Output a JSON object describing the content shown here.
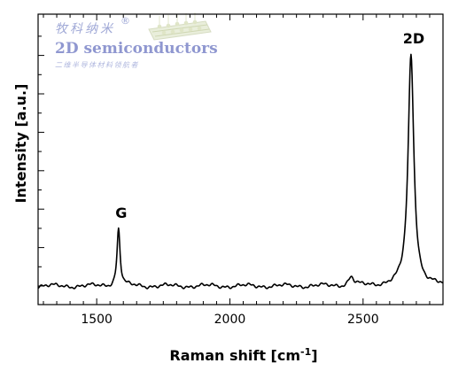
{
  "watermark": {
    "brand_cn": "牧科纳米",
    "registered": "®",
    "brand_en": "2D semiconductors",
    "tagline_cn": "二维半导体材料领航者"
  },
  "chart_data": {
    "type": "line",
    "title": "",
    "xlabel": "Raman shift [cm",
    "xlabel_sup": "-1",
    "xlabel_close": "]",
    "ylabel": "Intensity [a.u.]",
    "xlim": [
      1280,
      2800
    ],
    "ylim": [
      0,
      1
    ],
    "x_ticks": [
      1500,
      2000,
      2500
    ],
    "y_tick_labels_shown": false,
    "grid": false,
    "legend": "none",
    "colors": {
      "line": "#000000",
      "axes": "#000000"
    },
    "peaks": [
      {
        "label": "G",
        "x": 1582,
        "y": 0.245,
        "width": 7
      },
      {
        "label": "2D",
        "x": 2680,
        "y": 0.985,
        "width": 13
      },
      {
        "label": "",
        "x": 2455,
        "y": 0.038,
        "width": 12
      }
    ],
    "baseline": 0.0
  }
}
